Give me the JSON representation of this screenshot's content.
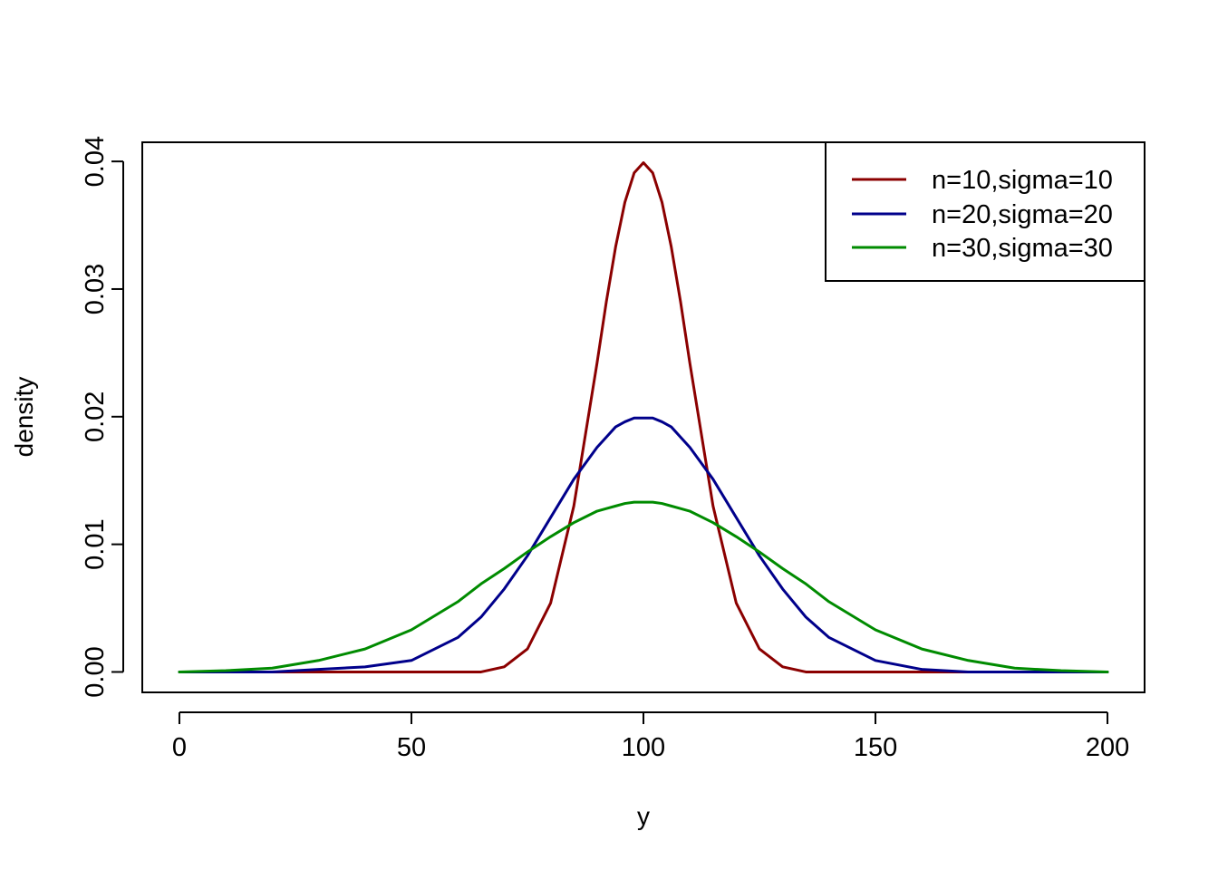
{
  "chart_data": {
    "type": "line",
    "title": "",
    "xlabel": "y",
    "ylabel": "density",
    "xlim": [
      -8,
      208
    ],
    "ylim": [
      -0.0016,
      0.0415
    ],
    "xticks": [
      0,
      50,
      100,
      150,
      200
    ],
    "yticks": [
      0.0,
      0.01,
      0.02,
      0.03,
      0.04
    ],
    "xtick_labels": [
      "0",
      "50",
      "100",
      "150",
      "200"
    ],
    "ytick_labels": [
      "0.00",
      "0.01",
      "0.02",
      "0.03",
      "0.04"
    ],
    "grid": false,
    "legend_position": "top-right",
    "x": [
      0,
      10,
      20,
      30,
      40,
      50,
      60,
      65,
      70,
      75,
      80,
      85,
      90,
      92,
      94,
      96,
      98,
      100,
      102,
      104,
      106,
      108,
      110,
      115,
      120,
      125,
      130,
      135,
      140,
      150,
      160,
      170,
      180,
      190,
      200
    ],
    "series": [
      {
        "name": "n=10,sigma=10",
        "color": "#8B0000",
        "values": [
          0.0,
          0.0,
          0.0,
          0.0,
          0.0,
          0.0,
          0.0,
          0.0,
          0.0004,
          0.0018,
          0.0054,
          0.013,
          0.0242,
          0.029,
          0.0333,
          0.0368,
          0.0391,
          0.0399,
          0.0391,
          0.0368,
          0.0333,
          0.029,
          0.0242,
          0.013,
          0.0054,
          0.0018,
          0.0004,
          0.0,
          0.0,
          0.0,
          0.0,
          0.0,
          0.0,
          0.0,
          0.0
        ]
      },
      {
        "name": "n=20,sigma=20",
        "color": "#00008B",
        "values": [
          0.0,
          0.0,
          0.0,
          0.0002,
          0.0004,
          0.0009,
          0.0027,
          0.0043,
          0.0065,
          0.0091,
          0.0121,
          0.0151,
          0.0176,
          0.0184,
          0.0192,
          0.0196,
          0.0199,
          0.0199,
          0.0199,
          0.0196,
          0.0192,
          0.0184,
          0.0176,
          0.0151,
          0.0121,
          0.0091,
          0.0065,
          0.0043,
          0.0027,
          0.0009,
          0.0002,
          0.0,
          0.0,
          0.0,
          0.0
        ]
      },
      {
        "name": "n=30,sigma=30",
        "color": "#008B00",
        "values": [
          0.0,
          0.0001,
          0.0003,
          0.0009,
          0.0018,
          0.0033,
          0.0055,
          0.0069,
          0.0081,
          0.0094,
          0.0106,
          0.0117,
          0.0126,
          0.0128,
          0.013,
          0.0132,
          0.0133,
          0.0133,
          0.0133,
          0.0132,
          0.013,
          0.0128,
          0.0126,
          0.0117,
          0.0106,
          0.0094,
          0.0081,
          0.0069,
          0.0055,
          0.0033,
          0.0018,
          0.0009,
          0.0003,
          0.0001,
          0.0
        ]
      }
    ]
  }
}
